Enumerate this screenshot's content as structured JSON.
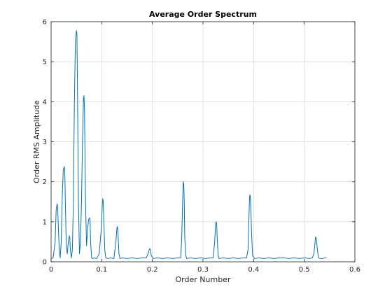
{
  "chart_data": {
    "type": "line",
    "title": "Average Order Spectrum",
    "xlabel": "Order Number",
    "ylabel": "Order RMS Amplitude",
    "xlim": [
      0,
      0.6
    ],
    "ylim": [
      0,
      6
    ],
    "xticks": [
      0,
      0.1,
      0.2,
      0.3,
      0.4,
      0.5,
      0.6
    ],
    "xtick_labels": [
      "0",
      "0.1",
      "0.2",
      "0.3",
      "0.4",
      "0.5",
      "0.6"
    ],
    "yticks": [
      0,
      1,
      2,
      3,
      4,
      5,
      6
    ],
    "ytick_labels": [
      "0",
      "1",
      "2",
      "3",
      "4",
      "5",
      "6"
    ],
    "grid": true,
    "line_color": "#0072bd",
    "series": [
      {
        "x": [
          0.0,
          0.004,
          0.008,
          0.01,
          0.012,
          0.013,
          0.014,
          0.016,
          0.018,
          0.02,
          0.022,
          0.024,
          0.026,
          0.027,
          0.028,
          0.03,
          0.032,
          0.034,
          0.036,
          0.037,
          0.038,
          0.04,
          0.042,
          0.044,
          0.046,
          0.048,
          0.05,
          0.051,
          0.052,
          0.054,
          0.056,
          0.058,
          0.06,
          0.062,
          0.064,
          0.065,
          0.066,
          0.068,
          0.07,
          0.072,
          0.074,
          0.076,
          0.077,
          0.078,
          0.08,
          0.082,
          0.085,
          0.09,
          0.095,
          0.099,
          0.101,
          0.102,
          0.103,
          0.104,
          0.106,
          0.108,
          0.112,
          0.118,
          0.124,
          0.128,
          0.13,
          0.131,
          0.132,
          0.134,
          0.136,
          0.14,
          0.15,
          0.16,
          0.17,
          0.18,
          0.188,
          0.192,
          0.194,
          0.195,
          0.196,
          0.198,
          0.202,
          0.21,
          0.22,
          0.23,
          0.24,
          0.25,
          0.256,
          0.258,
          0.26,
          0.261,
          0.262,
          0.263,
          0.264,
          0.266,
          0.268,
          0.275,
          0.285,
          0.295,
          0.305,
          0.315,
          0.32,
          0.323,
          0.325,
          0.326,
          0.327,
          0.328,
          0.33,
          0.332,
          0.34,
          0.35,
          0.36,
          0.37,
          0.38,
          0.386,
          0.389,
          0.391,
          0.392,
          0.393,
          0.394,
          0.396,
          0.398,
          0.402,
          0.41,
          0.42,
          0.43,
          0.44,
          0.45,
          0.46,
          0.47,
          0.48,
          0.49,
          0.5,
          0.51,
          0.516,
          0.519,
          0.521,
          0.522,
          0.523,
          0.524,
          0.526,
          0.528,
          0.532,
          0.536,
          0.54,
          0.544
        ],
        "y": [
          0.08,
          0.1,
          0.5,
          1.3,
          1.45,
          1.35,
          1.0,
          0.3,
          0.1,
          0.5,
          1.6,
          2.3,
          2.38,
          2.3,
          1.6,
          0.4,
          0.2,
          0.5,
          0.65,
          0.6,
          0.3,
          0.1,
          0.3,
          1.5,
          4.0,
          5.5,
          5.78,
          5.7,
          4.5,
          1.5,
          0.2,
          0.5,
          1.5,
          3.0,
          4.1,
          4.15,
          3.8,
          1.5,
          0.4,
          0.8,
          1.05,
          1.1,
          1.0,
          0.5,
          0.1,
          0.08,
          0.1,
          0.08,
          0.2,
          0.8,
          1.4,
          1.58,
          1.5,
          1.1,
          0.3,
          0.1,
          0.08,
          0.1,
          0.08,
          0.5,
          0.85,
          0.88,
          0.75,
          0.2,
          0.08,
          0.1,
          0.08,
          0.1,
          0.08,
          0.1,
          0.1,
          0.22,
          0.31,
          0.33,
          0.3,
          0.15,
          0.08,
          0.1,
          0.08,
          0.1,
          0.08,
          0.1,
          0.1,
          0.6,
          1.6,
          2.0,
          1.95,
          1.5,
          0.6,
          0.15,
          0.08,
          0.1,
          0.08,
          0.1,
          0.08,
          0.1,
          0.1,
          0.5,
          0.95,
          1.0,
          0.95,
          0.6,
          0.15,
          0.08,
          0.1,
          0.08,
          0.1,
          0.08,
          0.1,
          0.1,
          0.3,
          1.2,
          1.63,
          1.67,
          1.5,
          0.7,
          0.15,
          0.08,
          0.1,
          0.08,
          0.1,
          0.08,
          0.1,
          0.1,
          0.08,
          0.1,
          0.08,
          0.1,
          0.08,
          0.1,
          0.2,
          0.45,
          0.6,
          0.62,
          0.55,
          0.3,
          0.1,
          0.08,
          0.08,
          0.1,
          0.1
        ]
      }
    ]
  }
}
